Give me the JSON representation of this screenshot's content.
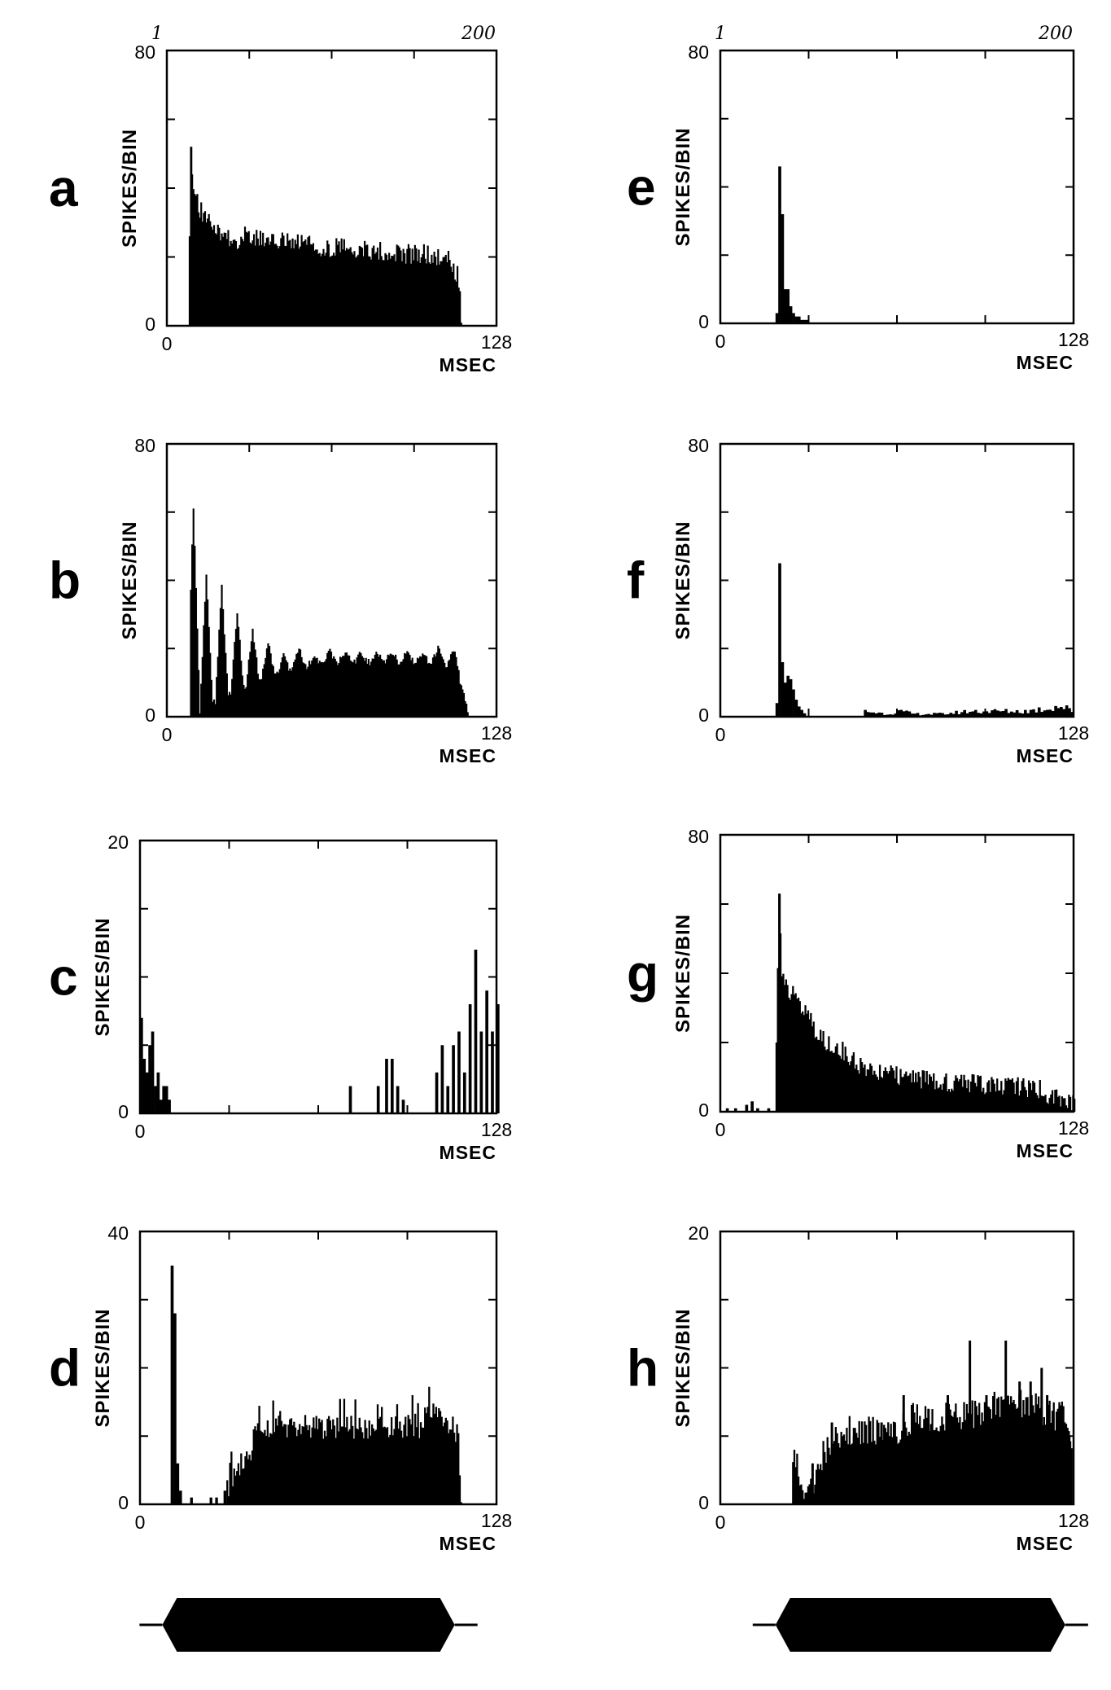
{
  "chart_data": [
    {
      "panel": "a",
      "type": "bar",
      "ylabel": "SPIKES/BIN",
      "xlabel": "MSEC",
      "xlim": [
        0,
        128
      ],
      "ylim": [
        0,
        80
      ],
      "ytick_labels": [
        "80",
        "0"
      ],
      "xtick_labels": [
        "0",
        "128"
      ],
      "top_tick_labels": [
        "1",
        "200"
      ],
      "onset": 8,
      "offset": 113,
      "key_points": [
        [
          8,
          0
        ],
        [
          9,
          52
        ],
        [
          10,
          36
        ],
        [
          12,
          34
        ],
        [
          14,
          30
        ],
        [
          16,
          29
        ],
        [
          20,
          26
        ],
        [
          25,
          24
        ],
        [
          30,
          25
        ],
        [
          40,
          23
        ],
        [
          50,
          24
        ],
        [
          60,
          22
        ],
        [
          70,
          22
        ],
        [
          80,
          21
        ],
        [
          90,
          20
        ],
        [
          100,
          20
        ],
        [
          110,
          18
        ],
        [
          113,
          13
        ],
        [
          114,
          0
        ]
      ]
    },
    {
      "panel": "b",
      "type": "bar",
      "ylabel": "SPIKES/BIN",
      "xlabel": "MSEC",
      "xlim": [
        0,
        128
      ],
      "ylim": [
        0,
        80
      ],
      "ytick_labels": [
        "80",
        "0"
      ],
      "xtick_labels": [
        "0",
        "128"
      ],
      "onset": 9,
      "offset": 117,
      "peaks": [
        [
          10,
          62
        ],
        [
          15,
          42
        ],
        [
          21,
          38
        ],
        [
          27,
          31
        ],
        [
          33,
          26
        ],
        [
          39,
          22
        ],
        [
          45,
          18
        ],
        [
          51,
          20
        ],
        [
          57,
          18
        ],
        [
          63,
          19
        ],
        [
          69,
          19
        ],
        [
          75,
          19
        ],
        [
          81,
          19
        ],
        [
          87,
          19
        ],
        [
          93,
          19
        ],
        [
          99,
          19
        ],
        [
          105,
          20
        ],
        [
          111,
          19
        ]
      ],
      "baseline_points": [
        [
          9,
          0
        ],
        [
          20,
          5
        ],
        [
          40,
          12
        ],
        [
          60,
          16
        ],
        [
          80,
          16
        ],
        [
          100,
          16
        ],
        [
          112,
          15
        ],
        [
          117,
          0
        ]
      ]
    },
    {
      "panel": "c",
      "type": "bar",
      "ylabel": "SPIKES/BIN",
      "xlabel": "MSEC",
      "xlim": [
        0,
        128
      ],
      "ylim": [
        0,
        20
      ],
      "ytick_labels": [
        "20",
        "0"
      ],
      "xtick_labels": [
        "0",
        "128"
      ],
      "points": [
        [
          0,
          7
        ],
        [
          1,
          4
        ],
        [
          2,
          3
        ],
        [
          3,
          5
        ],
        [
          4,
          6
        ],
        [
          5,
          2
        ],
        [
          6,
          3
        ],
        [
          7,
          1
        ],
        [
          8,
          2
        ],
        [
          9,
          2
        ],
        [
          10,
          1
        ],
        [
          75,
          2
        ],
        [
          85,
          2
        ],
        [
          88,
          4
        ],
        [
          90,
          4
        ],
        [
          92,
          2
        ],
        [
          94,
          1
        ],
        [
          106,
          3
        ],
        [
          108,
          5
        ],
        [
          110,
          2
        ],
        [
          112,
          5
        ],
        [
          114,
          6
        ],
        [
          116,
          3
        ],
        [
          118,
          8
        ],
        [
          120,
          12
        ],
        [
          122,
          6
        ],
        [
          124,
          9
        ],
        [
          126,
          6
        ],
        [
          128,
          8
        ]
      ]
    },
    {
      "panel": "d",
      "type": "bar",
      "ylabel": "SPIKES/BIN",
      "xlabel": "MSEC",
      "xlim": [
        0,
        128
      ],
      "ylim": [
        0,
        40
      ],
      "ytick_labels": [
        "40",
        "0"
      ],
      "xtick_labels": [
        "0",
        "128"
      ],
      "peak": [
        [
          11,
          35
        ],
        [
          12,
          28
        ],
        [
          13,
          6
        ],
        [
          14,
          2
        ]
      ],
      "sparse_points": [
        [
          18,
          1
        ],
        [
          25,
          1
        ],
        [
          27,
          1
        ],
        [
          30,
          2
        ]
      ],
      "key_points": [
        [
          31,
          2
        ],
        [
          35,
          5
        ],
        [
          40,
          8
        ],
        [
          42,
          13
        ],
        [
          45,
          10
        ],
        [
          50,
          11
        ],
        [
          55,
          11
        ],
        [
          60,
          11
        ],
        [
          70,
          11
        ],
        [
          80,
          11
        ],
        [
          90,
          11
        ],
        [
          100,
          11
        ],
        [
          106,
          14
        ],
        [
          110,
          12
        ],
        [
          114,
          10
        ],
        [
          115,
          0
        ]
      ]
    },
    {
      "panel": "e",
      "type": "bar",
      "ylabel": "SPIKES/BIN",
      "xlabel": "MSEC",
      "xlim": [
        0,
        128
      ],
      "ylim": [
        0,
        80
      ],
      "ytick_labels": [
        "80",
        "0"
      ],
      "xtick_labels": [
        "0",
        "128"
      ],
      "top_tick_labels": [
        "1",
        "200"
      ],
      "points": [
        [
          20,
          3
        ],
        [
          21,
          46
        ],
        [
          22,
          32
        ],
        [
          23,
          10
        ],
        [
          24,
          10
        ],
        [
          25,
          5
        ],
        [
          26,
          3
        ],
        [
          27,
          2
        ],
        [
          28,
          2
        ],
        [
          29,
          1
        ],
        [
          30,
          1
        ],
        [
          31,
          1
        ]
      ]
    },
    {
      "panel": "f",
      "type": "bar",
      "ylabel": "SPIKES/BIN",
      "xlabel": "MSEC",
      "xlim": [
        0,
        128
      ],
      "ylim": [
        0,
        80
      ],
      "ytick_labels": [
        "80",
        "0"
      ],
      "xtick_labels": [
        "0",
        "128"
      ],
      "points": [
        [
          20,
          4
        ],
        [
          21,
          45
        ],
        [
          22,
          16
        ],
        [
          23,
          10
        ],
        [
          24,
          12
        ],
        [
          25,
          11
        ],
        [
          26,
          8
        ],
        [
          27,
          5
        ],
        [
          28,
          3
        ],
        [
          29,
          2
        ],
        [
          30,
          1
        ]
      ],
      "tail_points": [
        [
          52,
          2
        ],
        [
          60,
          1
        ],
        [
          64,
          2
        ],
        [
          70,
          1
        ],
        [
          80,
          1
        ],
        [
          90,
          2
        ],
        [
          100,
          2
        ],
        [
          110,
          2
        ],
        [
          118,
          3
        ],
        [
          122,
          4
        ],
        [
          125,
          3
        ],
        [
          127,
          2
        ]
      ]
    },
    {
      "panel": "g",
      "type": "bar",
      "ylabel": "SPIKES/BIN",
      "xlabel": "MSEC",
      "xlim": [
        0,
        128
      ],
      "ylim": [
        0,
        80
      ],
      "ytick_labels": [
        "80",
        "0"
      ],
      "xtick_labels": [
        "0",
        "128"
      ],
      "pre_points": [
        [
          2,
          1
        ],
        [
          5,
          1
        ],
        [
          9,
          2
        ],
        [
          11,
          3
        ],
        [
          13,
          1
        ],
        [
          17,
          1
        ]
      ],
      "key_points": [
        [
          20,
          20
        ],
        [
          21,
          63
        ],
        [
          22,
          40
        ],
        [
          24,
          35
        ],
        [
          26,
          33
        ],
        [
          28,
          30
        ],
        [
          30,
          28
        ],
        [
          33,
          24
        ],
        [
          36,
          20
        ],
        [
          40,
          18
        ],
        [
          45,
          16
        ],
        [
          50,
          12
        ],
        [
          55,
          10
        ],
        [
          60,
          10
        ],
        [
          70,
          9
        ],
        [
          80,
          8
        ],
        [
          90,
          7
        ],
        [
          100,
          7
        ],
        [
          110,
          6
        ],
        [
          116,
          6
        ],
        [
          118,
          3
        ],
        [
          122,
          3
        ],
        [
          128,
          2
        ]
      ]
    },
    {
      "panel": "h",
      "type": "bar",
      "ylabel": "SPIKES/BIN",
      "xlabel": "MSEC",
      "xlim": [
        0,
        128
      ],
      "ylim": [
        0,
        20
      ],
      "ytick_labels": [
        "20",
        "0"
      ],
      "xtick_labels": [
        "0",
        "128"
      ],
      "key_points": [
        [
          26,
          2
        ],
        [
          27,
          3
        ],
        [
          28,
          2
        ],
        [
          30,
          1
        ],
        [
          34,
          1
        ],
        [
          36,
          3
        ],
        [
          40,
          4
        ],
        [
          45,
          5
        ],
        [
          50,
          5
        ],
        [
          55,
          5
        ],
        [
          60,
          5
        ],
        [
          65,
          5
        ],
        [
          70,
          6
        ],
        [
          75,
          6
        ],
        [
          80,
          6
        ],
        [
          90,
          6
        ],
        [
          100,
          7
        ],
        [
          110,
          7
        ],
        [
          120,
          6
        ],
        [
          125,
          6
        ],
        [
          127,
          3
        ]
      ],
      "peaks": [
        [
          33,
          3
        ],
        [
          40,
          6
        ],
        [
          44,
          5
        ],
        [
          48,
          5
        ],
        [
          52,
          4
        ],
        [
          58,
          6
        ],
        [
          66,
          8
        ],
        [
          70,
          6
        ],
        [
          75,
          7
        ],
        [
          82,
          8
        ],
        [
          90,
          12
        ],
        [
          96,
          8
        ],
        [
          103,
          12
        ],
        [
          108,
          9
        ],
        [
          112,
          9
        ],
        [
          116,
          10
        ],
        [
          118,
          8
        ],
        [
          122,
          7
        ],
        [
          126,
          5
        ]
      ]
    }
  ],
  "stimulus_envelopes": [
    {
      "column": "left",
      "onset": 8,
      "offset": 113
    },
    {
      "column": "right",
      "onset": 20,
      "offset": 125
    }
  ]
}
